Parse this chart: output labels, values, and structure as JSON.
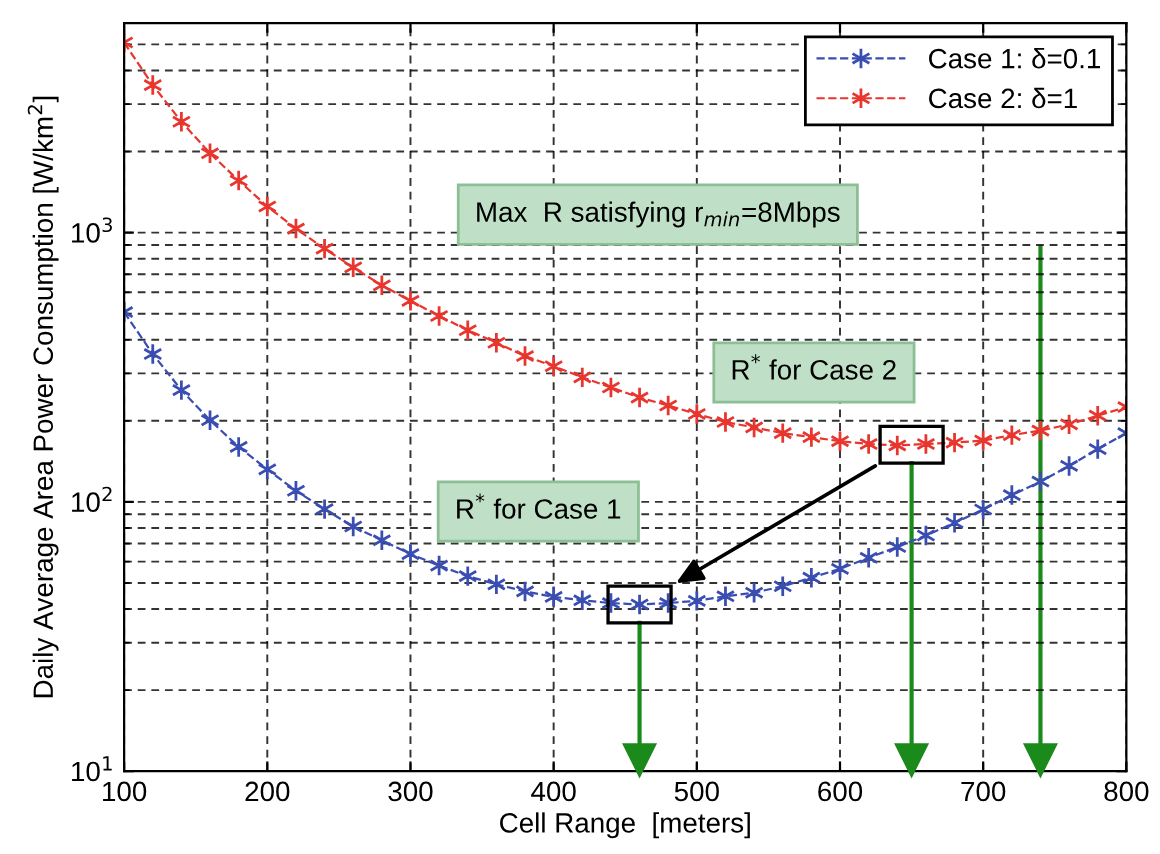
{
  "chart_data": {
    "type": "line",
    "xlabel": "Cell Range  [meters]",
    "ylabel": "Daily Average Area Power Consumption [W/km$^{2}$]",
    "x": [
      100,
      120,
      140,
      160,
      180,
      200,
      220,
      240,
      260,
      280,
      300,
      320,
      340,
      360,
      380,
      400,
      420,
      440,
      460,
      480,
      500,
      520,
      540,
      560,
      580,
      600,
      620,
      640,
      660,
      680,
      700,
      720,
      740,
      760,
      780,
      800
    ],
    "series": [
      {
        "name": "Case 1: δ=0.1",
        "color": "#3a4db0",
        "values": [
          507,
          354,
          260,
          201,
          160,
          132,
          110,
          94,
          81,
          72,
          64,
          58,
          53,
          49.4,
          46.5,
          44.4,
          43.1,
          42.1,
          41.6,
          42.1,
          42.9,
          44.6,
          46,
          48.6,
          52.3,
          56.4,
          62,
          68,
          75,
          83.6,
          93.7,
          106,
          119,
          136,
          157,
          180
        ]
      },
      {
        "name": "Case 2: δ=1",
        "color": "#e8352e",
        "values": [
          5080,
          3530,
          2580,
          1970,
          1560,
          1250,
          1035,
          872,
          743,
          637,
          558,
          490,
          434,
          390,
          348,
          319,
          290,
          266,
          244,
          228,
          212,
          198,
          189,
          180,
          174,
          168,
          164,
          162,
          164,
          166,
          169,
          177,
          184,
          194,
          209,
          225
        ]
      }
    ],
    "log": "y",
    "xlim": [
      100,
      800
    ],
    "ylim": [
      10,
      6000
    ],
    "xticks": [
      100,
      200,
      300,
      400,
      500,
      600,
      700,
      800
    ],
    "yticks": [
      {
        "value": 10,
        "label": "10$^{1}$"
      },
      {
        "value": 100,
        "label": "10$^{2}$"
      },
      {
        "value": 1000,
        "label": "10$^{3}$"
      }
    ],
    "grid": true,
    "legend": "top right",
    "marker": "cross",
    "line_style": "dashed",
    "annotations": [
      "R$^{*}$ for Case 1",
      "R$^{*}$ for Case 2",
      "Max  R satisfying r$_{min}$=8Mbps"
    ],
    "ref_lines": [
      {
        "axis": "x",
        "value": 460,
        "color": "#1a8a1a"
      },
      {
        "axis": "x",
        "value": 650,
        "color": "#1a8a1a"
      },
      {
        "axis": "x",
        "value": 740,
        "color": "#1a8a1a"
      }
    ]
  }
}
